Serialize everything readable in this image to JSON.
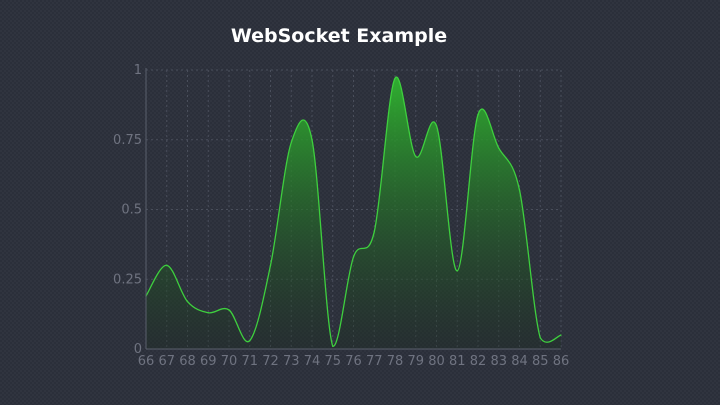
{
  "chart_data": {
    "type": "area",
    "title": "WebSocket Example",
    "xlabel": "",
    "ylabel": "",
    "x": [
      "66",
      "67",
      "68",
      "69",
      "70",
      "71",
      "72",
      "73",
      "74",
      "75",
      "76",
      "77",
      "78",
      "79",
      "80",
      "81",
      "82",
      "83",
      "84",
      "85",
      "86"
    ],
    "values": [
      0.19,
      0.3,
      0.17,
      0.13,
      0.14,
      0.03,
      0.3,
      0.74,
      0.75,
      0.01,
      0.33,
      0.42,
      0.97,
      0.69,
      0.8,
      0.28,
      0.84,
      0.72,
      0.57,
      0.04,
      0.05
    ],
    "ylim": [
      0,
      1
    ],
    "yticks": [
      {
        "value": 0,
        "label": "0"
      },
      {
        "value": 0.25,
        "label": "0.25"
      },
      {
        "value": 0.5,
        "label": "0.5"
      },
      {
        "value": 0.75,
        "label": "0.75"
      },
      {
        "value": 1,
        "label": "1"
      }
    ],
    "grid": true,
    "legend": "none",
    "colors": {
      "line": "#3ecf3e",
      "fill_top": "#2fb52f",
      "fill_bottom": "#1a2a1e",
      "background": "#2b2f3a"
    }
  }
}
